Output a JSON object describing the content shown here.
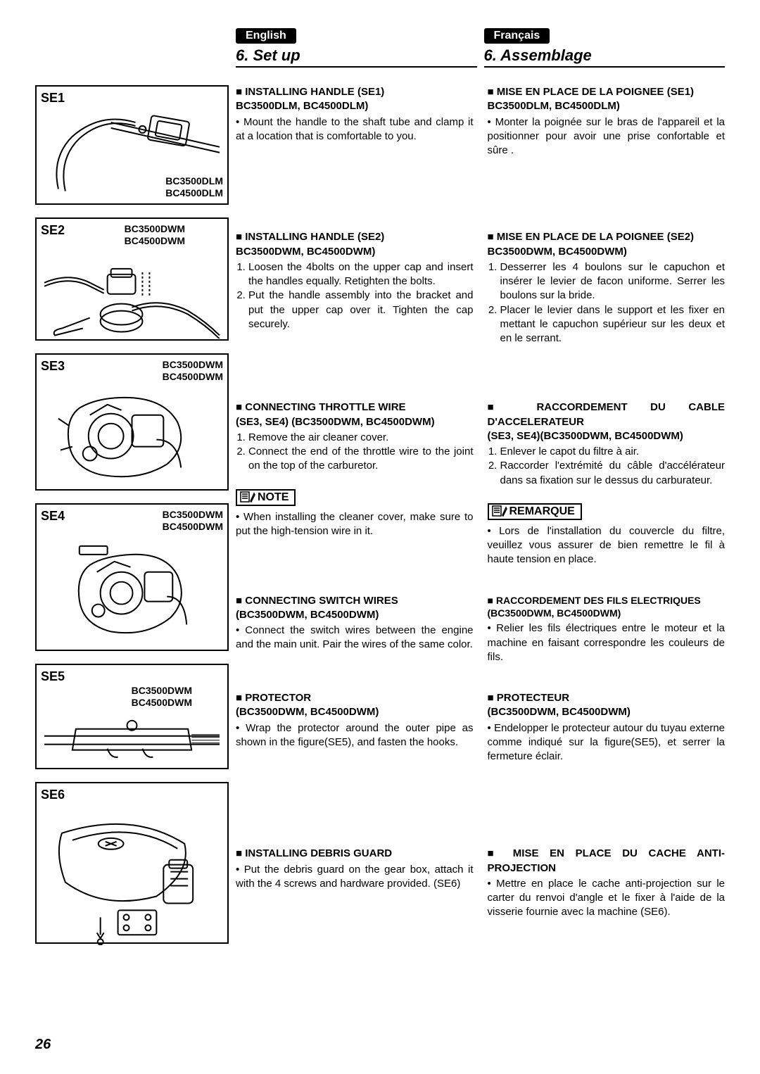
{
  "page_number": "26",
  "english": {
    "pill": "English",
    "title": "6. Set up",
    "se1": {
      "h1": "INSTALLING HANDLE (SE1)",
      "h2": "BC3500DLM, BC4500DLM)",
      "body": "Mount the handle to the shaft tube and clamp it at a location that is comfortable to you."
    },
    "se2": {
      "h1": "INSTALLING HANDLE (SE2)",
      "h2": "BC3500DWM, BC4500DWM)",
      "i1": "Loosen the 4bolts on the upper cap and insert the handles equally. Retighten the bolts.",
      "i2": "Put the handle assembly into the bracket and put the upper cap over it. Tighten the cap securely."
    },
    "se3": {
      "h1": "CONNECTING THROTTLE WIRE",
      "h2": "(SE3, SE4) (BC3500DWM, BC4500DWM)",
      "i1": "Remove the air cleaner cover.",
      "i2": "Connect the end of the throttle wire to the joint on the top of the carburetor."
    },
    "note": {
      "label": "NOTE",
      "body": "When installing the cleaner cover, make sure to put the high-tension wire in it."
    },
    "se4": {
      "h1": "CONNECTING SWITCH WIRES",
      "h2": "(BC3500DWM, BC4500DWM)",
      "body": "Connect the switch wires between the engine and the main unit. Pair the wires of the same color."
    },
    "se5": {
      "h1": "PROTECTOR",
      "h2": "(BC3500DWM, BC4500DWM)",
      "body": "Wrap the protector around the outer pipe as shown in the figure(SE5), and fasten the hooks."
    },
    "se6": {
      "h1": "INSTALLING DEBRIS GUARD",
      "body": "Put the debris guard on the gear box, attach it with the 4 screws and hardware provided. (SE6)"
    }
  },
  "french": {
    "pill": "Français",
    "title": "6. Assemblage",
    "se1": {
      "h1": "MISE EN PLACE DE LA POIGNEE (SE1)",
      "h2": "BC3500DLM, BC4500DLM)",
      "body": "Monter la poignée sur le bras de l'appareil et la positionner pour avoir une prise confortable et sûre ."
    },
    "se2": {
      "h1": "MISE EN PLACE DE LA POIGNEE (SE2)",
      "h2": "BC3500DWM, BC4500DWM)",
      "i1": "Desserrer les 4 boulons sur le capuchon et insérer le levier de facon uniforme. Serrer les boulons sur la bride.",
      "i2": "Placer le levier dans le support et les fixer en mettant le capuchon supérieur sur les deux et en le serrant."
    },
    "se3": {
      "h1a": "RACCORDEMENT",
      "h1b": "DU",
      "h1c": "CABLE",
      "h1d": "D'ACCELERATEUR",
      "h2": "(SE3, SE4)(BC3500DWM, BC4500DWM)",
      "i1": "Enlever le capot du filtre à air.",
      "i2": "Raccorder l'extrémité du câble d'accélérateur dans sa fixation sur le dessus du carburateur."
    },
    "note": {
      "label": "REMARQUE",
      "body": "Lors de l'installation du couvercle du filtre, veuillez vous assurer de bien remettre le fil à haute tension en place."
    },
    "se4": {
      "h1": "RACCORDEMENT DES FILS ELECTRIQUES",
      "h2": "(BC3500DWM, BC4500DWM)",
      "body": "Relier les fils électriques entre le moteur et la machine en faisant correspondre les couleurs de fils."
    },
    "se5": {
      "h1": "PROTECTEUR",
      "h2": "(BC3500DWM, BC4500DWM)",
      "body": "Endelopper le protecteur autour du tuyau externe comme indiqué sur la figure(SE5), et serrer la fermeture éclair."
    },
    "se6": {
      "h1": "MISE EN PLACE DU CACHE ANTI-PROJECTION",
      "body": "Mettre en place le cache anti-projection sur le carter du renvoi d'angle et le fixer à l'aide de la visserie fournie avec la machine (SE6)."
    }
  },
  "figures": {
    "se1": {
      "label": "SE1",
      "models": "BC3500DLM\nBC4500DLM",
      "models_pos": "bottom:6px; right:6px;"
    },
    "se2": {
      "label": "SE2",
      "models": "BC3500DWM\nBC4500DWM",
      "models_pos": "top:6px; right:60px;"
    },
    "se3": {
      "label": "SE3",
      "models": "BC3500DWM\nBC4500DWM",
      "models_pos": "top:6px; right:6px;"
    },
    "se4": {
      "label": "SE4",
      "models": "BC3500DWM\nBC4500DWM",
      "models_pos": "top:6px; right:6px;"
    },
    "se5": {
      "label": "SE5",
      "models": "BC3500DWM\nBC4500DWM",
      "models_pos": "top:28px; right:50px;"
    },
    "se6": {
      "label": "SE6"
    }
  }
}
